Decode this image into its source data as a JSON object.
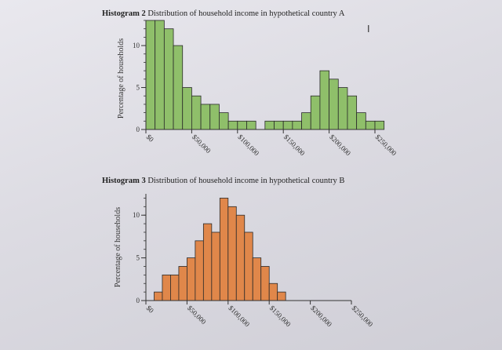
{
  "cursor_icon": "text-cursor-icon",
  "chart_data": [
    {
      "type": "bar",
      "title_prefix": "Histogram 2",
      "title": "Distribution of household income in hypothetical country A",
      "ylabel": "Percentage of households",
      "xlabel": "",
      "bin_width": 10000,
      "bin_start": 0,
      "values": [
        13,
        13,
        12,
        10,
        5,
        4,
        3,
        3,
        2,
        1,
        1,
        1,
        0,
        1,
        1,
        1,
        1,
        2,
        4,
        7,
        6,
        5,
        4,
        2,
        1,
        1
      ],
      "xticks": [
        "$0",
        "$50,000",
        "$100,000",
        "$150,000",
        "$200,000",
        "$250,000"
      ],
      "xtick_values": [
        0,
        50000,
        100000,
        150000,
        200000,
        250000
      ],
      "yticks": [
        "0",
        "5",
        "10"
      ],
      "ytick_values": [
        0,
        5,
        10
      ],
      "ylim": [
        0,
        13
      ],
      "xlim": [
        0,
        250000
      ],
      "color": "#8fbf6a"
    },
    {
      "type": "bar",
      "title_prefix": "Histogram 3",
      "title": "Distribution of household income in hypothetical country B",
      "ylabel": "Percentage of households",
      "xlabel": "",
      "bin_width": 10000,
      "bin_start": 10000,
      "values": [
        1,
        3,
        3,
        4,
        5,
        7,
        9,
        8,
        12,
        11,
        10,
        8,
        5,
        4,
        2,
        1
      ],
      "xticks": [
        "$0",
        "$50,000",
        "$100,000",
        "$150,000",
        "$200,000",
        "$250,000"
      ],
      "xtick_values": [
        0,
        50000,
        100000,
        150000,
        200000,
        250000
      ],
      "yticks": [
        "0",
        "5",
        "10"
      ],
      "ytick_values": [
        0,
        5,
        10
      ],
      "ylim": [
        0,
        12.5
      ],
      "xlim": [
        0,
        250000
      ],
      "color": "#e0874a"
    }
  ]
}
